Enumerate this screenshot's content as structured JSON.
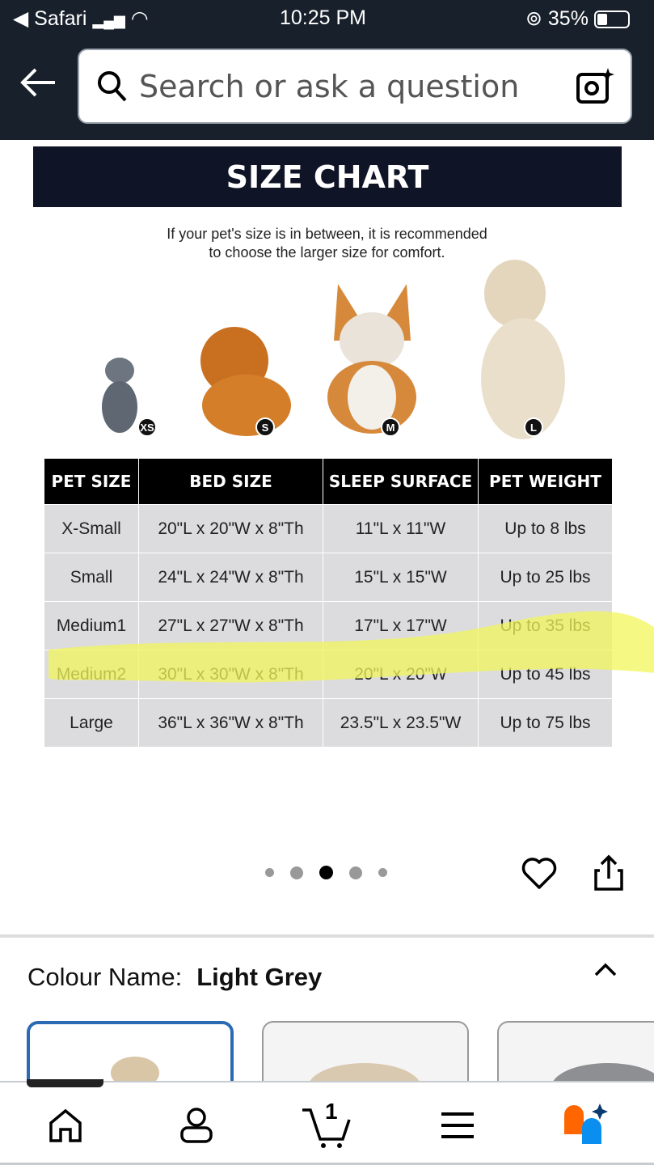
{
  "status_bar": {
    "back_app": "Safari",
    "time": "10:25 PM",
    "battery": "35%"
  },
  "search": {
    "placeholder": "Search or ask a question"
  },
  "size_chart": {
    "title": "SIZE CHART",
    "note_line1": "If your pet's size is in between, it is recommended",
    "note_line2": "to choose the larger size for comfort.",
    "pets": [
      {
        "badge": "XS"
      },
      {
        "badge": "S"
      },
      {
        "badge": "M"
      },
      {
        "badge": "L"
      }
    ],
    "headers": [
      "PET SIZE",
      "BED SIZE",
      "SLEEP SURFACE",
      "PET WEIGHT"
    ],
    "rows": [
      [
        "X-Small",
        "20\"L x 20\"W x 8\"Th",
        "11\"L x 11\"W",
        "Up to 8 lbs"
      ],
      [
        "Small",
        "24\"L x 24\"W x 8\"Th",
        "15\"L x 15\"W",
        "Up to 25 lbs"
      ],
      [
        "Medium1",
        "27\"L x 27\"W x 8\"Th",
        "17\"L x 17\"W",
        "Up to 35 lbs"
      ],
      [
        "Medium2",
        "30\"L x 30\"W x 8\"Th",
        "20\"L x 20\"W",
        "Up to 45 lbs"
      ],
      [
        "Large",
        "36\"L x 36\"W x 8\"Th",
        "23.5\"L x 23.5\"W",
        "Up to 75 lbs"
      ]
    ],
    "highlight_color": "#f2f55a"
  },
  "carousel": {
    "total": 5,
    "active": 3
  },
  "colour": {
    "label": "Colour Name:",
    "value": "Light Grey",
    "selected_border": "#2a6bb3"
  },
  "nav": {
    "cart_count": "1"
  }
}
